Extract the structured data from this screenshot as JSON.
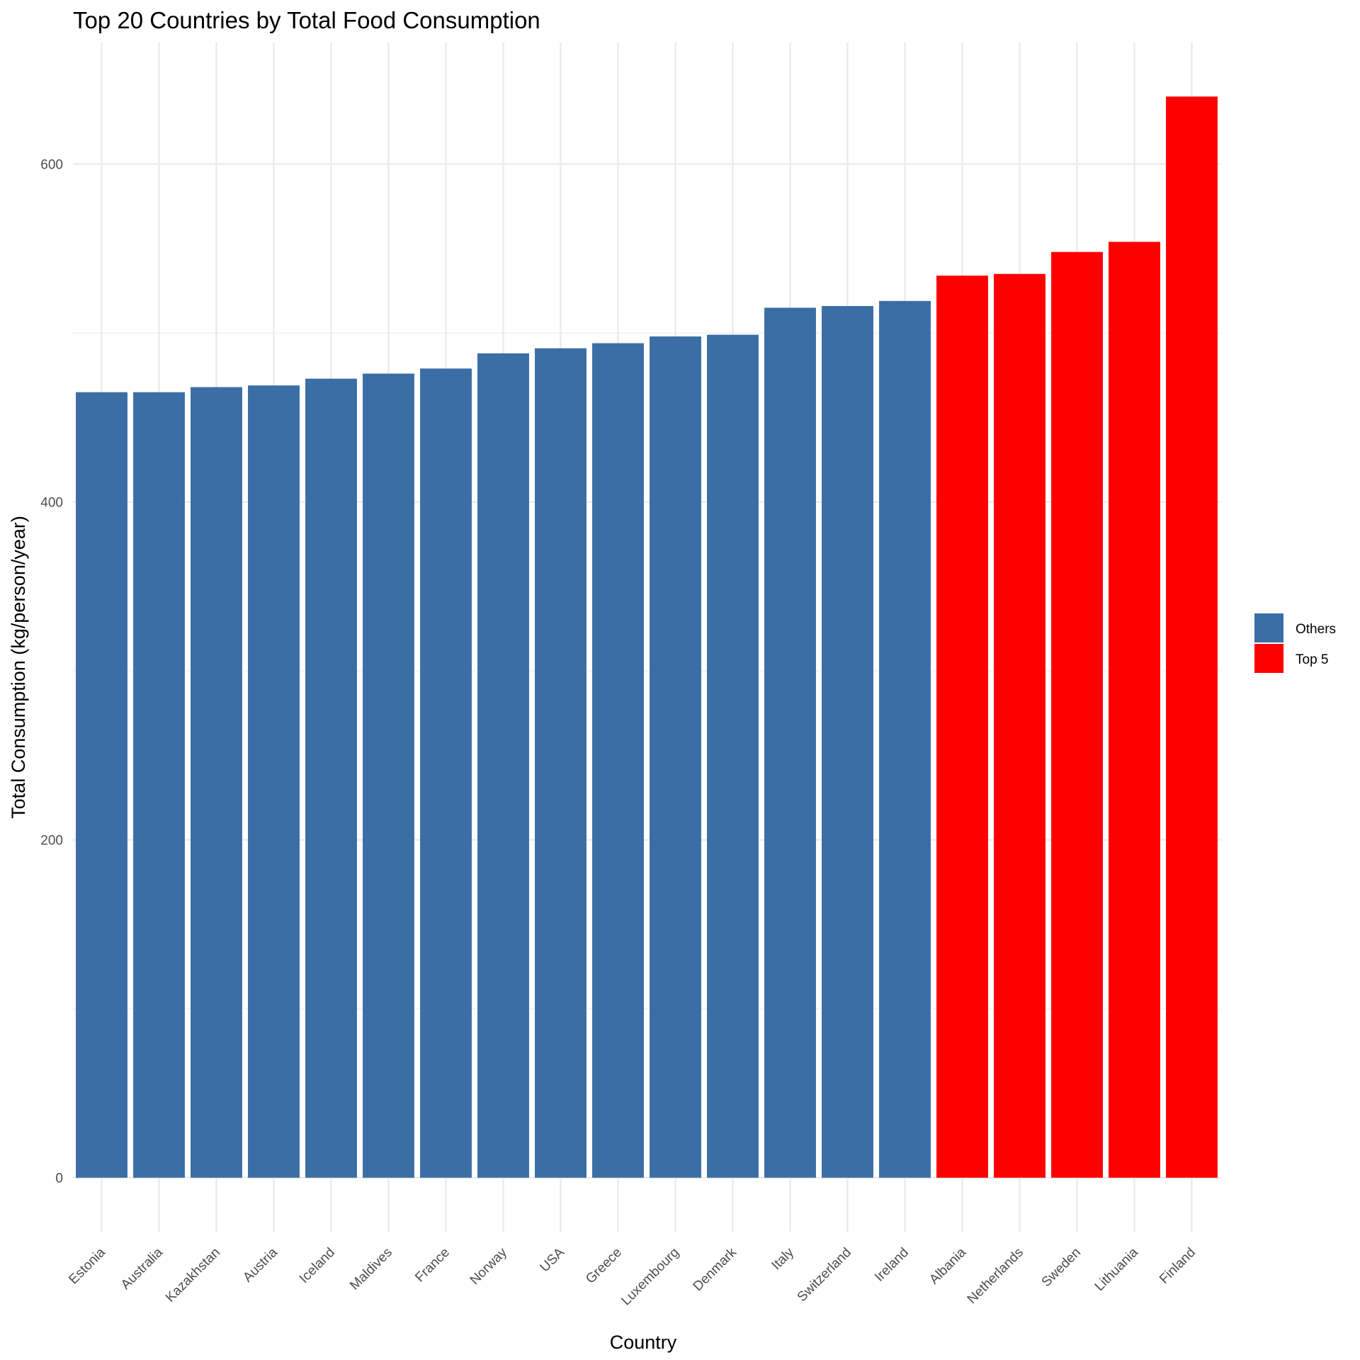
{
  "chart_data": {
    "type": "bar",
    "title": "Top 20 Countries by Total Food Consumption",
    "xlabel": "Country",
    "ylabel": "Total Consumption (kg/person/year)",
    "categories": [
      "Estonia",
      "Australia",
      "Kazakhstan",
      "Austria",
      "Iceland",
      "Maldives",
      "France",
      "Norway",
      "USA",
      "Greece",
      "Luxembourg",
      "Denmark",
      "Italy",
      "Switzerland",
      "Ireland",
      "Albania",
      "Netherlands",
      "Sweden",
      "Lithuania",
      "Finland"
    ],
    "values": [
      465,
      465,
      468,
      469,
      473,
      476,
      479,
      488,
      491,
      494,
      498,
      499,
      515,
      516,
      519,
      534,
      535,
      548,
      554,
      640
    ],
    "groups": [
      "Others",
      "Others",
      "Others",
      "Others",
      "Others",
      "Others",
      "Others",
      "Others",
      "Others",
      "Others",
      "Others",
      "Others",
      "Others",
      "Others",
      "Others",
      "Top 5",
      "Top 5",
      "Top 5",
      "Top 5",
      "Top 5"
    ],
    "ylim": [
      -32,
      672
    ],
    "yticks": [
      0,
      200,
      400,
      600
    ],
    "legend": {
      "position": "right",
      "entries": [
        {
          "label": "Others",
          "color": "#3A6EA5"
        },
        {
          "label": "Top 5",
          "color": "#FF0000"
        }
      ]
    },
    "grid": true
  }
}
